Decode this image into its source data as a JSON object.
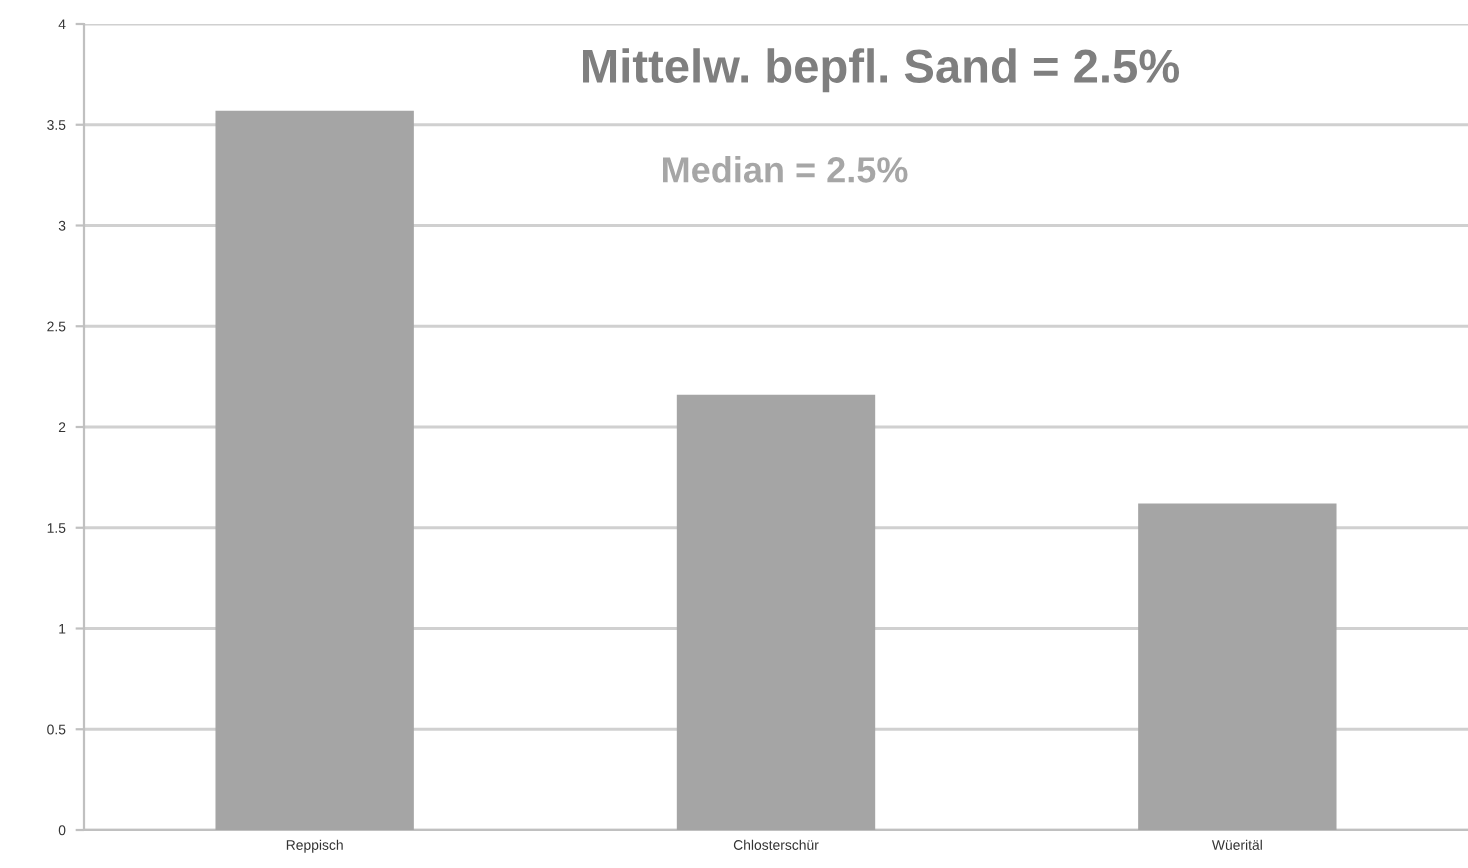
{
  "chart_data": {
    "type": "bar",
    "categories": [
      "Reppisch",
      "Chlosterschür",
      "Wüeritäl"
    ],
    "values": [
      3.57,
      2.16,
      1.62
    ],
    "color": "#a5a5a5",
    "ylim": [
      0,
      4
    ],
    "yticks": [
      0,
      0.5,
      1,
      1.5,
      2,
      2.5,
      3,
      3.5,
      4
    ],
    "grid": "y",
    "annotations": [
      "Mittelw. bepfl. Sand = 2.5%",
      "Median = 2.5%"
    ]
  }
}
